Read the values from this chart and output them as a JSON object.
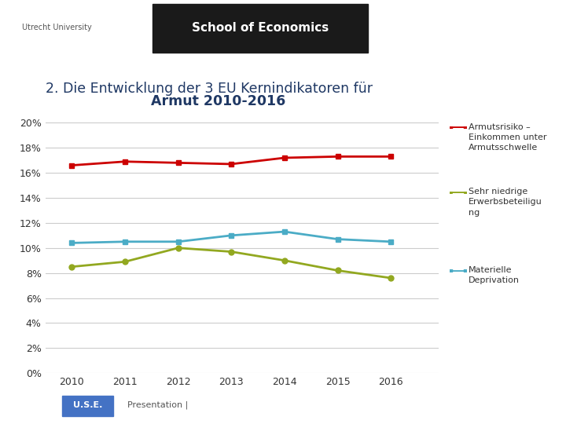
{
  "title_line1": "2. Die Entwicklung der 3 EU Kernindikatoren für",
  "title_line2": "Armut 2010-2016",
  "years": [
    2010,
    2011,
    2012,
    2013,
    2014,
    2015,
    2016
  ],
  "armutsrisiko": [
    16.6,
    16.9,
    16.8,
    16.7,
    17.2,
    17.3,
    17.3
  ],
  "erwerbsbeteiligung": [
    8.5,
    8.9,
    10.0,
    9.7,
    9.0,
    8.2,
    7.6
  ],
  "materielle_deprivation": [
    10.4,
    10.5,
    10.5,
    11.0,
    11.3,
    10.7,
    10.5
  ],
  "color_armutsrisiko": "#CC0000",
  "color_erwerbsbeteiligung": "#92A820",
  "color_materielle_deprivation": "#4BACC6",
  "legend_armutsrisiko": "Armutsrisiko –\nEinkommen unter\nArmutsschwelle",
  "legend_erwerbsbeteiligung": "Sehr niedrige\nErwerbsbeteiligu\nng",
  "legend_materielle": "Materielle\nDeprivation",
  "yticks": [
    0,
    2,
    4,
    6,
    8,
    10,
    12,
    14,
    16,
    18,
    20
  ],
  "ylim": [
    0,
    21
  ],
  "background_color": "#FFFFFF",
  "title_color": "#1F3864",
  "header_text": "School of Economics",
  "use_text": "U.S.E.",
  "presentation_text": "  Presentation |"
}
